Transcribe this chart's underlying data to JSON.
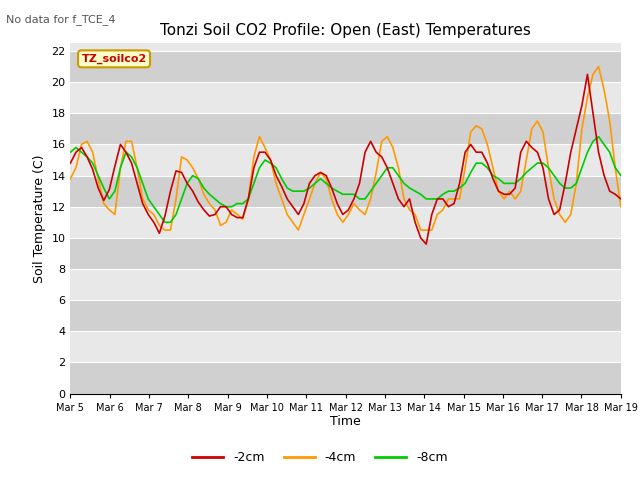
{
  "title": "Tonzi Soil CO2 Profile: Open (East) Temperatures",
  "no_data_text": "No data for f_TCE_4",
  "ylabel": "Soil Temperature (C)",
  "xlabel": "Time",
  "legend_label": "TZ_soilco2",
  "yticks": [
    0,
    2,
    4,
    6,
    8,
    10,
    12,
    14,
    16,
    18,
    20,
    22
  ],
  "ylim": [
    0,
    22.5
  ],
  "xtick_labels": [
    "Mar 5",
    "Mar 6",
    "Mar 7",
    "Mar 8",
    "Mar 9",
    "Mar 10",
    "Mar 11",
    "Mar 12",
    "Mar 13",
    "Mar 14",
    "Mar 15",
    "Mar 16",
    "Mar 17",
    "Mar 18",
    "Mar 19"
  ],
  "color_2cm": "#cc0000",
  "color_4cm": "#ff9900",
  "color_8cm": "#00cc00",
  "fig_bg_color": "#ffffff",
  "plot_bg_color": "#e8e8e8",
  "grid_color": "#ffffff",
  "line_width": 1.2,
  "series_2cm": [
    14.8,
    15.5,
    15.8,
    15.2,
    14.4,
    13.2,
    12.4,
    13.1,
    14.6,
    16.0,
    15.5,
    14.8,
    13.5,
    12.2,
    11.5,
    11.0,
    10.3,
    11.4,
    13.0,
    14.3,
    14.2,
    13.5,
    13.0,
    12.3,
    11.8,
    11.4,
    11.5,
    12.0,
    12.0,
    11.5,
    11.3,
    11.3,
    12.5,
    14.5,
    15.5,
    15.5,
    15.0,
    14.0,
    13.3,
    12.5,
    12.0,
    11.5,
    12.2,
    13.5,
    14.0,
    14.2,
    14.0,
    13.2,
    12.2,
    11.5,
    11.8,
    12.5,
    13.5,
    15.5,
    16.2,
    15.5,
    15.2,
    14.5,
    13.5,
    12.5,
    12.0,
    12.5,
    11.0,
    10.0,
    9.6,
    11.5,
    12.5,
    12.5,
    12.0,
    12.2,
    13.5,
    15.5,
    16.0,
    15.5,
    15.5,
    14.8,
    13.8,
    13.0,
    12.8,
    12.8,
    13.2,
    15.5,
    16.2,
    15.8,
    15.5,
    14.5,
    12.5,
    11.5,
    11.8,
    13.5,
    15.5,
    17.0,
    18.5,
    20.5,
    18.0,
    15.5,
    14.0,
    13.0,
    12.8,
    12.5
  ],
  "series_4cm": [
    13.8,
    14.5,
    16.0,
    16.2,
    15.5,
    13.8,
    12.2,
    11.8,
    11.5,
    14.5,
    16.2,
    16.2,
    14.5,
    12.5,
    11.8,
    11.5,
    10.8,
    10.5,
    10.5,
    12.5,
    15.2,
    15.0,
    14.5,
    13.8,
    12.8,
    12.2,
    11.8,
    10.8,
    11.0,
    11.8,
    11.5,
    11.2,
    12.5,
    15.2,
    16.5,
    15.8,
    15.0,
    13.5,
    12.5,
    11.5,
    11.0,
    10.5,
    11.5,
    12.5,
    13.5,
    14.2,
    13.8,
    12.5,
    11.5,
    11.0,
    11.5,
    12.2,
    11.8,
    11.5,
    12.5,
    14.2,
    16.2,
    16.5,
    15.8,
    14.5,
    12.5,
    11.8,
    11.5,
    10.5,
    10.5,
    10.5,
    11.5,
    11.8,
    12.5,
    12.5,
    12.5,
    14.5,
    16.8,
    17.2,
    17.0,
    16.0,
    14.5,
    13.0,
    12.5,
    13.0,
    12.5,
    13.0,
    15.0,
    17.0,
    17.5,
    16.8,
    14.5,
    12.5,
    11.5,
    11.0,
    11.5,
    13.5,
    17.0,
    19.0,
    20.5,
    21.0,
    19.5,
    17.5,
    14.5,
    12.0
  ],
  "series_8cm": [
    15.5,
    15.8,
    15.5,
    15.2,
    14.8,
    14.0,
    13.2,
    12.5,
    13.0,
    14.5,
    15.5,
    15.2,
    14.5,
    13.5,
    12.5,
    12.0,
    11.5,
    11.0,
    11.0,
    11.5,
    12.5,
    13.5,
    14.0,
    13.8,
    13.2,
    12.8,
    12.5,
    12.2,
    12.0,
    12.0,
    12.2,
    12.2,
    12.5,
    13.5,
    14.5,
    15.0,
    14.8,
    14.5,
    13.8,
    13.2,
    13.0,
    13.0,
    13.0,
    13.2,
    13.5,
    13.8,
    13.5,
    13.2,
    13.0,
    12.8,
    12.8,
    12.8,
    12.5,
    12.5,
    13.0,
    13.5,
    14.0,
    14.5,
    14.5,
    14.0,
    13.5,
    13.2,
    13.0,
    12.8,
    12.5,
    12.5,
    12.5,
    12.8,
    13.0,
    13.0,
    13.2,
    13.5,
    14.2,
    14.8,
    14.8,
    14.5,
    14.0,
    13.8,
    13.5,
    13.5,
    13.5,
    13.8,
    14.2,
    14.5,
    14.8,
    14.8,
    14.5,
    14.0,
    13.5,
    13.2,
    13.2,
    13.5,
    14.5,
    15.5,
    16.2,
    16.5,
    16.0,
    15.5,
    14.5,
    14.0
  ]
}
